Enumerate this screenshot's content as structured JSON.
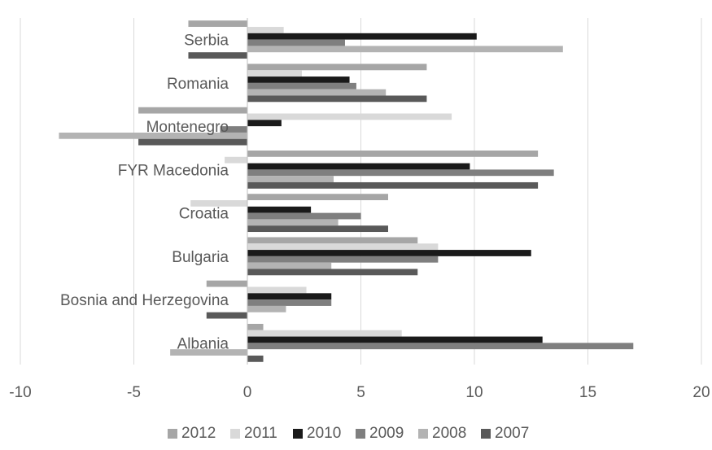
{
  "chart_data": {
    "type": "bar",
    "orientation": "horizontal",
    "categories": [
      "Albania",
      "Bosnia and Herzegovina",
      "Bulgaria",
      "Croatia",
      "FYR Macedonia",
      "Montenegro",
      "Romania",
      "Serbia"
    ],
    "series": [
      {
        "name": "2012",
        "color": "#a6a6a6",
        "values": [
          0.7,
          -1.8,
          7.5,
          6.2,
          12.8,
          -4.8,
          7.9,
          -2.6
        ]
      },
      {
        "name": "2011",
        "color": "#d9d9d9",
        "values": [
          6.8,
          2.6,
          8.4,
          -2.5,
          -1.0,
          9.0,
          2.4,
          1.6
        ]
      },
      {
        "name": "2010",
        "color": "#1a1a1a",
        "values": [
          13.0,
          3.7,
          12.5,
          2.8,
          9.8,
          1.5,
          4.5,
          10.1
        ]
      },
      {
        "name": "2009",
        "color": "#7f7f7f",
        "values": [
          17.0,
          3.7,
          8.4,
          5.0,
          13.5,
          -1.2,
          4.8,
          4.3
        ]
      },
      {
        "name": "2008",
        "color": "#b3b3b3",
        "values": [
          -3.4,
          1.7,
          3.7,
          4.0,
          3.8,
          -8.3,
          6.1,
          13.9
        ]
      },
      {
        "name": "2007",
        "color": "#595959",
        "values": [
          0.7,
          -1.8,
          7.5,
          6.2,
          12.8,
          -4.8,
          7.9,
          -2.6
        ]
      }
    ],
    "x_ticks": [
      "-10",
      "-5",
      "0",
      "5",
      "10",
      "15",
      "20"
    ],
    "xlim": [
      -10,
      20
    ],
    "grid": "vertical",
    "legend_position": "bottom",
    "title": "",
    "xlabel": "",
    "ylabel": ""
  }
}
